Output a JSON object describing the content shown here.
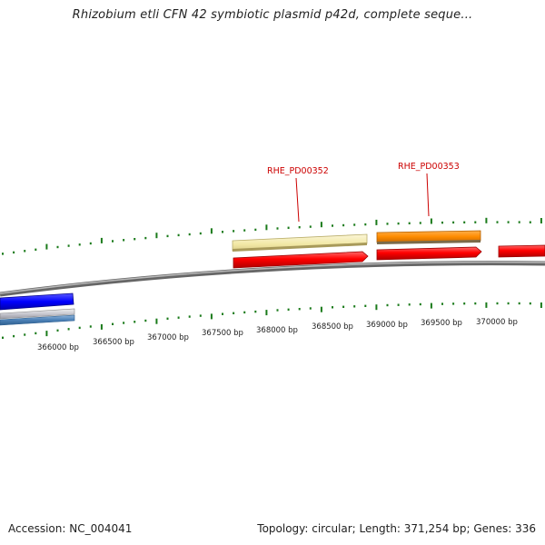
{
  "title": "Rhizobium etli CFN 42 symbiotic plasmid p42d, complete seque...",
  "footer": {
    "accession": "Accession: NC_004041",
    "summary": "Topology: circular; Length: 371,254 bp; Genes: 336"
  },
  "colors": {
    "backbone": "#8a8a8a",
    "tick": "#1a7a1a",
    "gene_red": "#ff0000",
    "gene_orange": "#ff8c00",
    "gene_yellow": "#f2e8a6",
    "gene_blue": "#0000ff",
    "gene_steel": "#4a7fb5",
    "gene_silver": "#c0c0c8",
    "label_red": "#cc0000"
  },
  "scale_labels": [
    "366000 bp",
    "366500 bp",
    "367000 bp",
    "367500 bp",
    "368000 bp",
    "368500 bp",
    "369000 bp",
    "369500 bp",
    "370000 bp"
  ],
  "gene_labels": [
    {
      "text": "RHE_PD00352",
      "color": "#cc0000"
    },
    {
      "text": "RHE_PD00353",
      "color": "#cc0000"
    }
  ]
}
